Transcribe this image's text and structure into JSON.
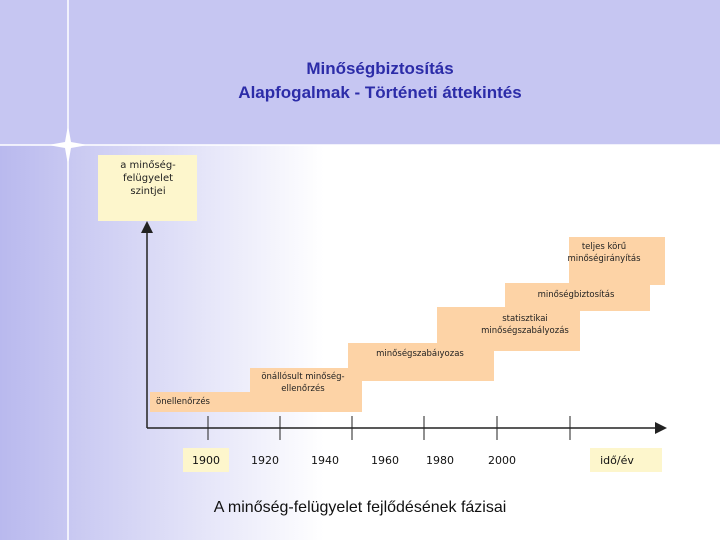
{
  "header": {
    "title_lines": [
      "Minőségbiztosítás",
      "Alapfogalmak - Történeti áttekintés"
    ]
  },
  "y_axis_label": {
    "lines": [
      "a minőség-",
      "felügyelet",
      "szintjei"
    ]
  },
  "stages": [
    {
      "lines": [
        "önellenőrzés"
      ]
    },
    {
      "lines": [
        "önállósult minőség-",
        "ellenőrzés"
      ]
    },
    {
      "lines": [
        "minőségszabályozás"
      ]
    },
    {
      "lines": [
        "statisztikai",
        "minőségszabályozás"
      ]
    },
    {
      "lines": [
        "minőségbiztosítás"
      ]
    },
    {
      "lines": [
        "teljes körű",
        "minőségirányítás"
      ]
    }
  ],
  "x_axis": {
    "ticks": [
      "1900",
      "1920",
      "1940",
      "1960",
      "1980",
      "2000"
    ],
    "label": "idő/év"
  },
  "caption": "A minőség-felügyelet fejlődésének fázisai"
}
